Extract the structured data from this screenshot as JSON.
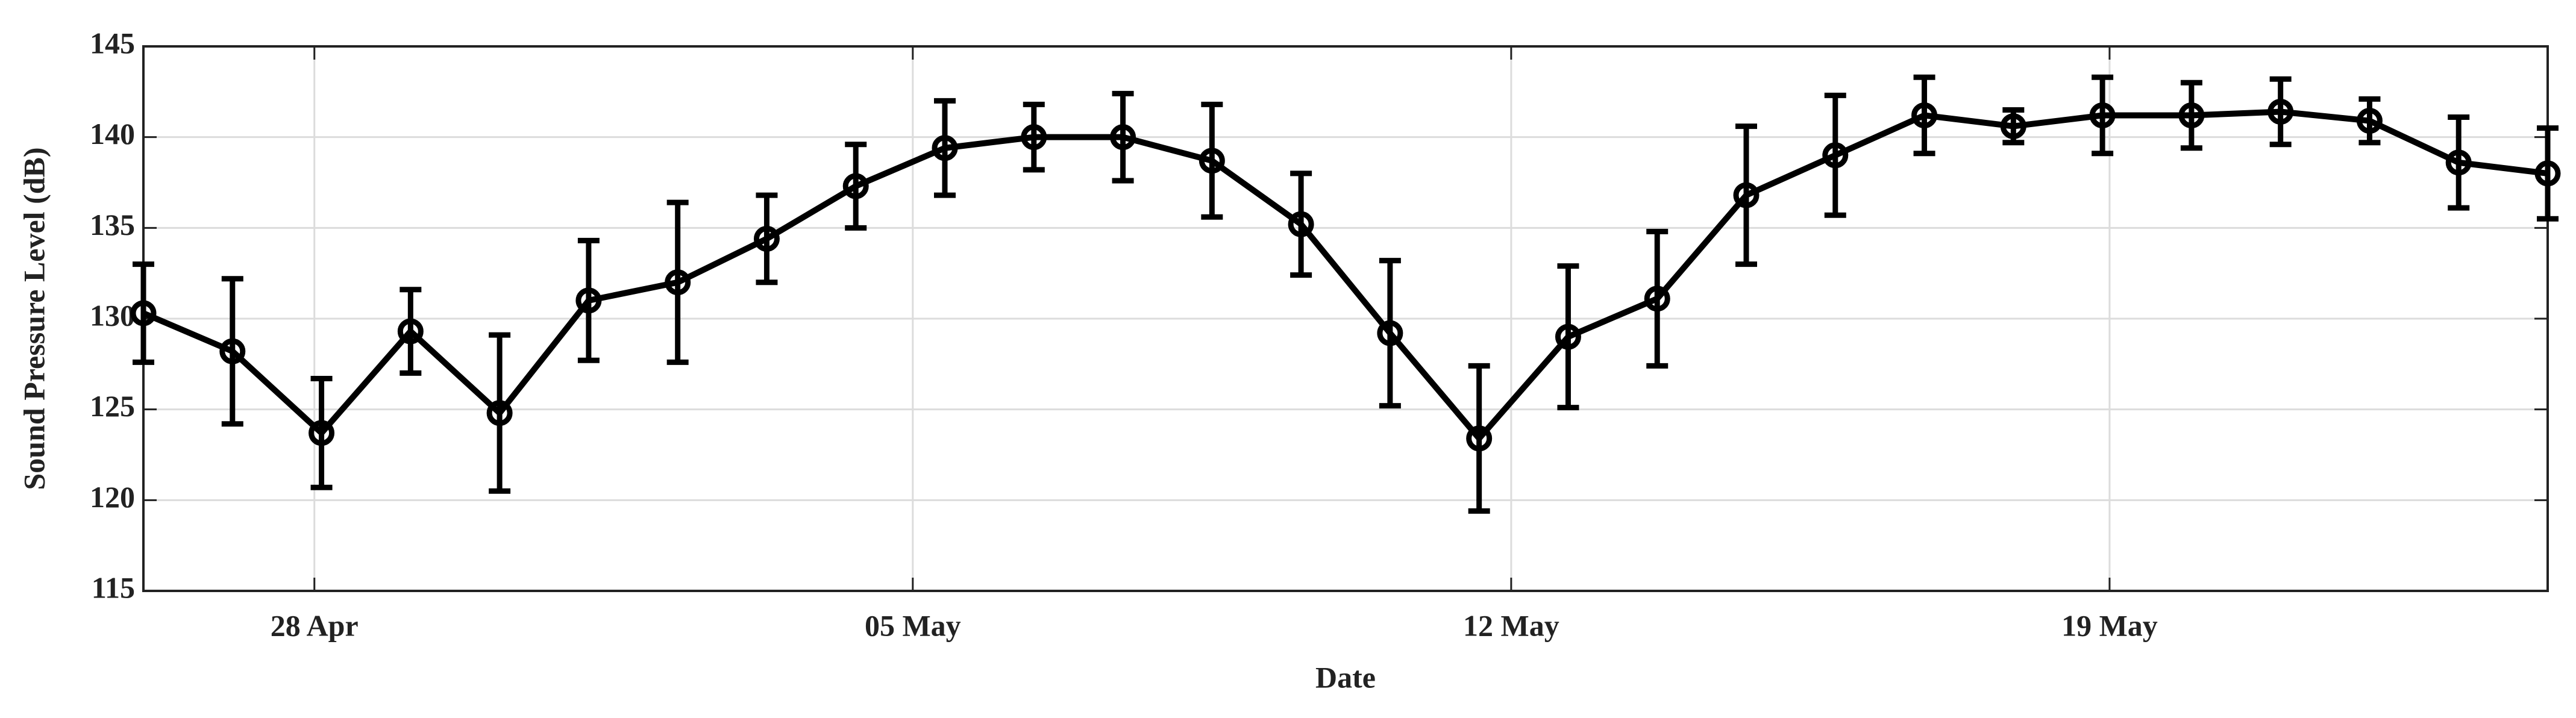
{
  "chart_data": {
    "type": "line",
    "x_label": "Date",
    "y_label": "Sound Pressure Level (dB)",
    "x": [
      0,
      1.0417,
      2.0833,
      3.125,
      4.1667,
      5.2083,
      6.25,
      7.2917,
      8.3333,
      9.375,
      10.4167,
      11.4583,
      12.5,
      13.5417,
      14.5833,
      15.625,
      16.6667,
      17.7083,
      18.75,
      19.7917,
      20.8333,
      21.875,
      22.9167,
      23.9583,
      25,
      26.0417,
      27.0833,
      28.125
    ],
    "series": [
      {
        "color": "#000000",
        "values": [
          130.3,
          128.2,
          123.7,
          129.3,
          124.8,
          131,
          132,
          134.4,
          137.3,
          139.4,
          140,
          140,
          138.7,
          135.2,
          129.2,
          123.4,
          129,
          131.1,
          136.8,
          139,
          141.2,
          140.6,
          141.2,
          141.2,
          141.4,
          140.9,
          138.6,
          138
        ],
        "errors": [
          2.7,
          4,
          3,
          2.3,
          4.3,
          3.3,
          4.4,
          2.4,
          2.3,
          2.6,
          1.8,
          2.4,
          3.1,
          2.8,
          4,
          4,
          3.9,
          3.7,
          3.8,
          3.3,
          2.1,
          0.9,
          2.1,
          1.8,
          1.8,
          1.2,
          2.5,
          2.5
        ]
      }
    ],
    "xlim": [
      0,
      28.125
    ],
    "xticks": [
      {
        "value": 2,
        "label": "28 Apr"
      },
      {
        "value": 9,
        "label": "05 May"
      },
      {
        "value": 16,
        "label": "12 May"
      },
      {
        "value": 23,
        "label": "19 May"
      }
    ],
    "ylim": [
      115,
      145
    ],
    "yticks": [
      115,
      120,
      125,
      130,
      135,
      140,
      145
    ],
    "grid": true
  }
}
